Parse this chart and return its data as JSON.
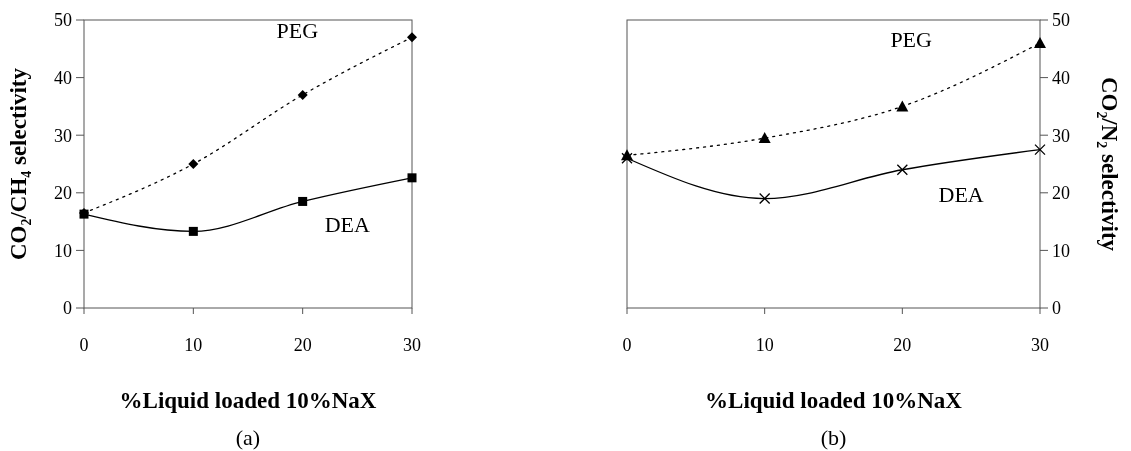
{
  "chart_data": [
    {
      "type": "line",
      "title": "(a)",
      "xlabel": "%Liquid loaded 10%NaX",
      "ylabel": "CO₂/CH₄ selectivity",
      "x": [
        0,
        10,
        20,
        30
      ],
      "xlim": [
        0,
        30
      ],
      "xticks": [
        0,
        10,
        20,
        30
      ],
      "ylim": [
        0,
        50
      ],
      "yticks": [
        0,
        10,
        20,
        30,
        40,
        50
      ],
      "grid": false,
      "series": [
        {
          "name": "PEG",
          "color": "#000000",
          "values": [
            16.5,
            25,
            37,
            47
          ],
          "marker": "diamond",
          "line_style": "dotted"
        },
        {
          "name": "DEA",
          "color": "#000000",
          "values": [
            16.3,
            13.3,
            18.5,
            22.6
          ],
          "marker": "square",
          "line_style": "solid"
        }
      ]
    },
    {
      "type": "line",
      "title": "(b)",
      "xlabel": "%Liquid loaded 10%NaX",
      "y2label": "CO₂/N₂ selectivity",
      "x": [
        0,
        10,
        20,
        30
      ],
      "xlim": [
        0,
        30
      ],
      "xticks": [
        0,
        10,
        20,
        30
      ],
      "y2lim": [
        0,
        50
      ],
      "y2ticks": [
        0,
        10,
        20,
        30,
        40,
        50
      ],
      "grid": false,
      "series": [
        {
          "name": "PEG",
          "color": "#000000",
          "values": [
            26.5,
            29.5,
            35,
            46
          ],
          "marker": "triangle",
          "line_style": "dotted",
          "axis": "y2"
        },
        {
          "name": "DEA",
          "color": "#000000",
          "values": [
            26,
            19,
            24,
            27.5
          ],
          "marker": "cross",
          "line_style": "solid",
          "axis": "y2"
        }
      ]
    }
  ]
}
